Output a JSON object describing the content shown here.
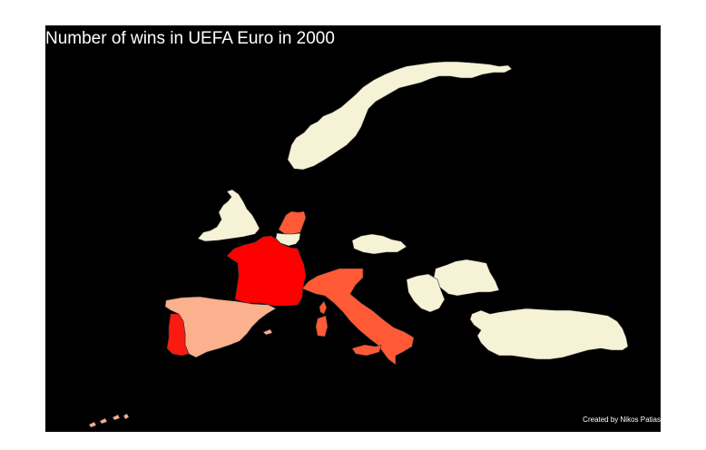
{
  "title": "Number of wins in UEFA Euro in 2000",
  "credit": "Created by Nikos Patias",
  "colors": {
    "background": "#000000",
    "title_text": "#ffffff",
    "scale": {
      "0": "#f5f2d6",
      "1": "#fbb08e",
      "2": "#ff5a35",
      "3": "#fb1a10",
      "4": "#ff0000"
    }
  },
  "countries": [
    {
      "name": "Norway",
      "wins": 0
    },
    {
      "name": "England",
      "wins": 0
    },
    {
      "name": "Netherlands",
      "wins": 2
    },
    {
      "name": "Belgium",
      "wins": 0
    },
    {
      "name": "France",
      "wins": 4
    },
    {
      "name": "Italy",
      "wins": 2
    },
    {
      "name": "Spain",
      "wins": 1
    },
    {
      "name": "Portugal",
      "wins": 3
    },
    {
      "name": "Czech Republic",
      "wins": 0
    },
    {
      "name": "Romania",
      "wins": 0
    },
    {
      "name": "Yugoslavia",
      "wins": 0
    },
    {
      "name": "Turkey",
      "wins": 0
    }
  ]
}
